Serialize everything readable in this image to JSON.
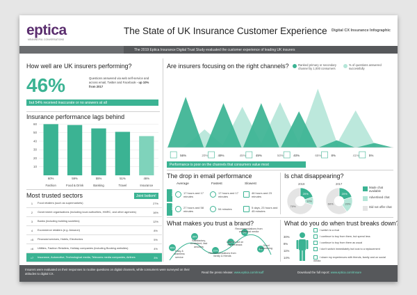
{
  "header": {
    "logo_word": "eptica",
    "logo_sub": "MEANINGFUL CONVERSATIONS",
    "title": "The State of UK Insurance Customer Experience",
    "tag": "Digital CX Insurance Infographic",
    "subtitle": "The 2019 Eptica Insurance Digital Trust Study evaluated the customer experience of leading UK insurers"
  },
  "perf": {
    "title": "How well are UK insurers performing?",
    "big": "46%",
    "desc_a": "Questions answered via web self-service and across email, Twitter and Facebook",
    "desc_b": " - up 10% from 2017",
    "bar": "but 54% received inaccurate or no answers at all"
  },
  "lags": {
    "title": "Insurance performance lags behind",
    "chart_data": {
      "type": "bar",
      "categories": [
        "Fashion",
        "Food & Drink",
        "Banking",
        "Travel",
        "Insurance"
      ],
      "values": [
        60,
        59,
        55,
        51,
        46
      ],
      "labels": [
        "60%",
        "59%",
        "55%",
        "51%",
        "46%"
      ],
      "ticks": [
        60,
        50,
        40,
        30,
        20,
        10
      ],
      "ylim": [
        0,
        62
      ]
    }
  },
  "sectors": {
    "title": "Most trusted sectors",
    "joint": "Joint bottom!",
    "rows": [
      {
        "rank": "1",
        "name": "Food retailers (such as supermarkets)",
        "pct": "27%"
      },
      {
        "rank": "2",
        "name": "Government organisations (including local authorities, HMRC, and other agencies)",
        "pct": "16%"
      },
      {
        "rank": "3",
        "name": "Banks (including building societies)",
        "pct": "12%"
      },
      {
        "rank": "4",
        "name": "Ecommerce retailers (e.g. Amazon)",
        "pct": "8%"
      },
      {
        "rank": "=5",
        "name": "Financial services, Hotels, Electronics",
        "pct": "5%"
      },
      {
        "rank": "=6",
        "name": "Utilities, Fashion Retailers, Holiday companies (including Booking websites)",
        "pct": "4%"
      },
      {
        "rank": "=7",
        "name": "Insurance, Automotive, Technological media, Telecoms media companies, Airlines",
        "pct": "3%"
      }
    ]
  },
  "channels": {
    "title": "Are insurers focusing on the right channels?",
    "legend_a": "Ranked primary or secondary channel by 1,000 consumers",
    "legend_b": "% of questions answered successfully",
    "chart_data": {
      "type": "area",
      "x": [
        "Phone",
        "Web",
        "Email",
        "Chat",
        "Facebook",
        "Twitter"
      ],
      "series": [
        {
          "name": "Ranked primary or secondary channel by 1,000 consumers",
          "values": [
            56,
            49,
            49,
            40,
            8,
            5
          ]
        },
        {
          "name": "% of questions answered successfully",
          "values": [
            50,
            20,
            45,
            50,
            65,
            41
          ]
        }
      ],
      "primary_labels": [
        "56%",
        "49%",
        "49%",
        "40%",
        "8%",
        "5%"
      ],
      "secondary_labels": [
        "",
        "20%",
        "45%",
        "50%",
        "65%",
        "41%"
      ],
      "ylim": [
        0,
        70
      ]
    },
    "bar": "Performance is poor on the channels that consumers value most"
  },
  "email": {
    "title": "The drop in email performance",
    "cols": [
      "Average",
      "Fastest",
      "Slowest"
    ],
    "y2019": "2019",
    "y2017": "2017",
    "row2019": [
      "17 hours and 17 minutes",
      "17 hours and 17 minutes",
      "46 hours and 23 minutes"
    ],
    "row2017": [
      "27 hours and 58 minutes",
      "54 minutes",
      "5 days, 23 hours and 45 minutes"
    ]
  },
  "chat": {
    "title": "Is chat disappearing?",
    "y2019": "2019",
    "y2017": "2017",
    "chart_data": {
      "type": "pie",
      "charts": [
        {
          "year": "2019",
          "values": [
            20,
            10,
            70
          ],
          "labels": [
            "20%",
            "10%",
            "70%"
          ]
        },
        {
          "year": "2017",
          "values": [
            20,
            20,
            60
          ],
          "labels": [
            "20%",
            "20%",
            "60%"
          ]
        }
      ],
      "legend": [
        "Made chat available",
        "Advertised chat",
        "Did not offer chat"
      ]
    },
    "legend": [
      "Made chat available",
      "Advertised chat",
      "Did not offer chat"
    ],
    "colors": {
      "made": "#3bb393",
      "advertised": "#b5e6d8",
      "none": "#e4e4e4"
    }
  },
  "trust": {
    "title": "What makes you trust a brand?",
    "items": [
      {
        "label": "Easy & seamless service",
        "pct": "45%"
      },
      {
        "label": "Satisfactory, consistent, fast answers",
        "pct": "28%"
      },
      {
        "label": "Good advertising",
        "pct": "4%"
      },
      {
        "label": "Recommendations from web/social media",
        "pct": "6%"
      },
      {
        "label": "Listen & act on my feedback",
        "pct": "10%"
      },
      {
        "label": "Recommendations from family & friends",
        "pct": "21%"
      }
    ]
  },
  "breaks": {
    "title": "What do you do when trust breaks down?",
    "pcts": [
      "30%",
      "8%",
      "11%",
      "14%"
    ],
    "items": [
      "I switch to a rival",
      "I continue to buy from them, but spend less",
      "I continue to buy from them as usual",
      "I don't switch immediately but look to a replacement",
      "I share my experiences with friends, family and on social media"
    ]
  },
  "footer": {
    "left": "Insurers were evaluated on their responses to routine questions on digital channels, while consumers were surveyed on their attitudes to digital CX.",
    "mid_a": "Read the press release: ",
    "mid_b": "www.eptica.com/Insuff",
    "right_a": "Download the full report: ",
    "right_b": "www.eptica.com/Insure"
  }
}
